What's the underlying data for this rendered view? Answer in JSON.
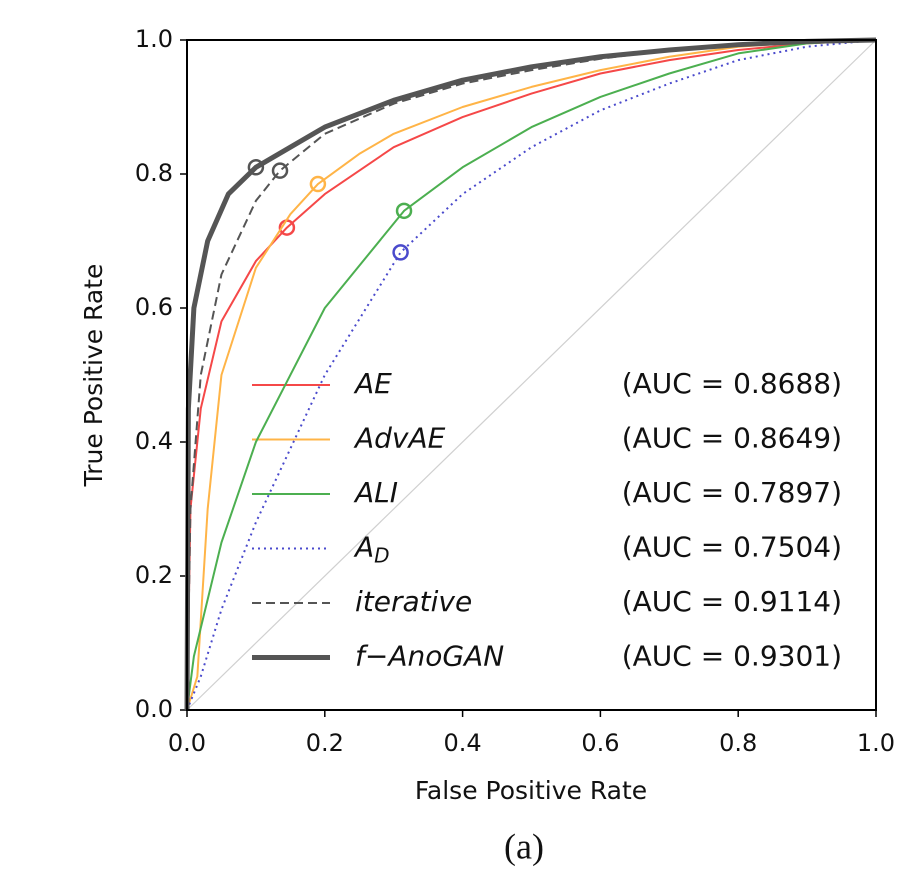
{
  "chart_data": {
    "type": "line",
    "xlabel": "False Positive Rate",
    "ylabel": "True Positive Rate",
    "caption": "(a)",
    "xlim": [
      0,
      1
    ],
    "ylim": [
      0,
      1
    ],
    "xticks": [
      {
        "value": 0,
        "label": "0.0"
      },
      0.2,
      0.4,
      0.6,
      0.8,
      {
        "value": 1,
        "label": "1.0"
      }
    ],
    "yticks": [
      {
        "value": 0,
        "label": "0.0"
      },
      0.2,
      0.4,
      0.6,
      0.8,
      {
        "value": 1,
        "label": "1.0"
      }
    ],
    "series": [
      {
        "name": "AE",
        "label": "(AUC = 0.8688)",
        "color": "#f54848",
        "linestyle": "solid",
        "linewidth": 2,
        "x": [
          0,
          0.005,
          0.02,
          0.05,
          0.1,
          0.145,
          0.2,
          0.3,
          0.4,
          0.5,
          0.6,
          0.7,
          0.8,
          0.9,
          1
        ],
        "values": [
          0,
          0.3,
          0.45,
          0.58,
          0.67,
          0.72,
          0.77,
          0.84,
          0.885,
          0.92,
          0.95,
          0.97,
          0.985,
          0.995,
          1
        ],
        "marker_x": 0.145,
        "marker_y": 0.72
      },
      {
        "name": "AdvAE",
        "label": "(AUC = 0.8649)",
        "color": "#ffb447",
        "linestyle": "solid",
        "linewidth": 2,
        "x": [
          0,
          0.015,
          0.03,
          0.05,
          0.1,
          0.15,
          0.19,
          0.25,
          0.3,
          0.4,
          0.5,
          0.6,
          0.7,
          0.8,
          0.9,
          1
        ],
        "values": [
          0,
          0.05,
          0.3,
          0.5,
          0.66,
          0.74,
          0.785,
          0.83,
          0.86,
          0.9,
          0.93,
          0.955,
          0.975,
          0.99,
          0.997,
          1
        ],
        "marker_x": 0.19,
        "marker_y": 0.785
      },
      {
        "name": "ALI",
        "label": "(AUC = 0.7897)",
        "color": "#4caf50",
        "linestyle": "solid",
        "linewidth": 2,
        "x": [
          0,
          0.01,
          0.05,
          0.1,
          0.2,
          0.315,
          0.4,
          0.5,
          0.6,
          0.7,
          0.8,
          0.9,
          1
        ],
        "values": [
          0,
          0.08,
          0.25,
          0.4,
          0.6,
          0.745,
          0.81,
          0.87,
          0.915,
          0.95,
          0.98,
          0.995,
          1
        ],
        "marker_x": 0.315,
        "marker_y": 0.745
      },
      {
        "name": "A_D",
        "label": "(AUC = 0.7504)",
        "color": "#4a4acc",
        "linestyle": "dotted",
        "linewidth": 2,
        "x": [
          0,
          0.02,
          0.05,
          0.1,
          0.2,
          0.31,
          0.4,
          0.5,
          0.6,
          0.7,
          0.8,
          0.9,
          1
        ],
        "values": [
          0,
          0.05,
          0.15,
          0.28,
          0.5,
          0.683,
          0.77,
          0.84,
          0.895,
          0.935,
          0.97,
          0.99,
          1
        ],
        "marker_x": 0.31,
        "marker_y": 0.683
      },
      {
        "name": "iterative",
        "label": "(AUC = 0.9114)",
        "color": "#555555",
        "linestyle": "dashed",
        "linewidth": 2,
        "x": [
          0,
          0.005,
          0.02,
          0.05,
          0.1,
          0.135,
          0.2,
          0.3,
          0.4,
          0.5,
          0.6,
          0.7,
          0.8,
          0.9,
          1
        ],
        "values": [
          0,
          0.3,
          0.5,
          0.65,
          0.76,
          0.805,
          0.86,
          0.905,
          0.935,
          0.955,
          0.972,
          0.985,
          0.993,
          0.998,
          1
        ],
        "marker_x": 0.135,
        "marker_y": 0.805
      },
      {
        "name": "f−AnoGAN",
        "label": "(AUC = 0.9301)",
        "color": "#555555",
        "linestyle": "solid",
        "linewidth": 5,
        "x": [
          0,
          0.002,
          0.01,
          0.03,
          0.06,
          0.1,
          0.15,
          0.2,
          0.3,
          0.4,
          0.5,
          0.6,
          0.7,
          0.8,
          0.9,
          1
        ],
        "values": [
          0,
          0.45,
          0.6,
          0.7,
          0.77,
          0.81,
          0.84,
          0.87,
          0.91,
          0.94,
          0.96,
          0.975,
          0.985,
          0.993,
          0.998,
          1
        ],
        "marker_x": 0.1,
        "marker_y": 0.81
      }
    ]
  }
}
